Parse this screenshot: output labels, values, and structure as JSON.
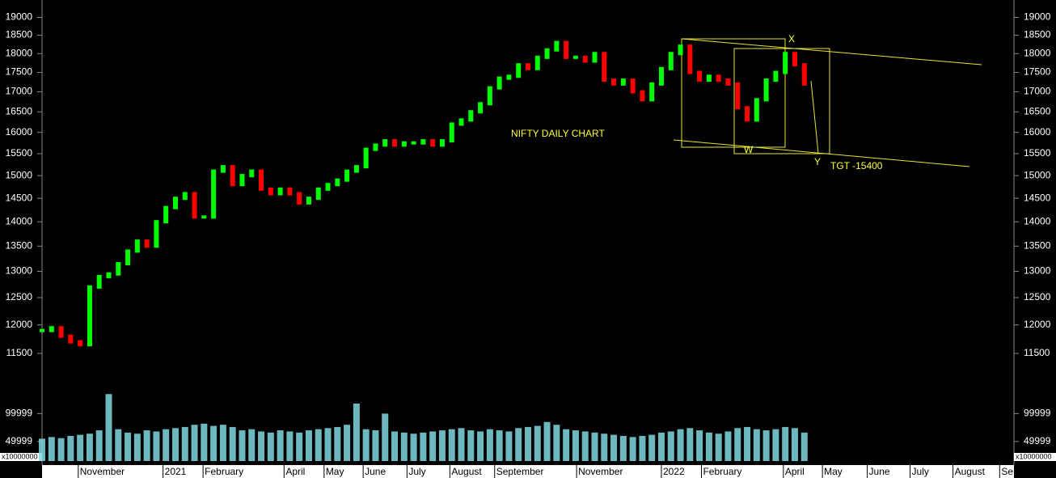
{
  "chart_data": {
    "type": "price-volume",
    "annotation": "NIFTY DAILY CHART",
    "labels": [
      "X",
      "W",
      "Y",
      "TGT -15400"
    ],
    "x": [
      0,
      1,
      2,
      3,
      4,
      5,
      6,
      7,
      8,
      9,
      10,
      11,
      12,
      13,
      14,
      15,
      16,
      17,
      18,
      19,
      20,
      21,
      22,
      23,
      24,
      25,
      26,
      27,
      28,
      29,
      30,
      31,
      32,
      33,
      34,
      35,
      36,
      37,
      38,
      39,
      40,
      41,
      42,
      43,
      44,
      45,
      46,
      47,
      48,
      49,
      50,
      51,
      52,
      53,
      54,
      55,
      56,
      57,
      58,
      59,
      60,
      61,
      62,
      63,
      64,
      65,
      66,
      67,
      68,
      69,
      70,
      71,
      72,
      73,
      74,
      75,
      76,
      77,
      78,
      79,
      80
    ],
    "values": [
      11900,
      11950,
      11800,
      11700,
      11650,
      12700,
      12900,
      12950,
      13150,
      13400,
      13600,
      13500,
      14000,
      14300,
      14500,
      14600,
      14100,
      14100,
      15100,
      15200,
      14800,
      15000,
      15100,
      14700,
      14600,
      14700,
      14600,
      14400,
      14500,
      14700,
      14800,
      14900,
      15100,
      15200,
      15600,
      15700,
      15800,
      15700,
      15750,
      15750,
      15800,
      15700,
      15800,
      16200,
      16300,
      16500,
      16700,
      17100,
      17350,
      17400,
      17700,
      17600,
      17900,
      18100,
      18300,
      17900,
      17900,
      17800,
      18000,
      17300,
      17200,
      17300,
      17000,
      16800,
      17200,
      17600,
      18000,
      18200,
      17500,
      17300,
      17400,
      17300,
      17200,
      16600,
      16300,
      16800,
      17300,
      17500,
      18000,
      17700,
      17200
    ],
    "up_color": "#00ff00",
    "down_color": "#ff0000",
    "log_y": true,
    "xlim": [
      0,
      102
    ],
    "xticks": [
      {
        "value": 3.8,
        "label": "November"
      },
      {
        "value": 12.7,
        "label": "2021"
      },
      {
        "value": 16.9,
        "label": "February"
      },
      {
        "value": 25.4,
        "label": "April"
      },
      {
        "value": 29.6,
        "label": "May"
      },
      {
        "value": 33.7,
        "label": "June"
      },
      {
        "value": 38.3,
        "label": "July"
      },
      {
        "value": 42.8,
        "label": "August"
      },
      {
        "value": 47.5,
        "label": "September"
      },
      {
        "value": 56.1,
        "label": "November"
      },
      {
        "value": 65.0,
        "label": "2022"
      },
      {
        "value": 69.2,
        "label": "February"
      },
      {
        "value": 77.8,
        "label": "April"
      },
      {
        "value": 81.9,
        "label": "May"
      },
      {
        "value": 86.6,
        "label": "June"
      },
      {
        "value": 91.1,
        "label": "July"
      },
      {
        "value": 95.6,
        "label": "August"
      },
      {
        "value": 100.5,
        "label": "Se"
      }
    ],
    "ylim": [
      11050,
      19500
    ],
    "yticks": [
      11500,
      12000,
      12500,
      13000,
      13500,
      14000,
      14500,
      15000,
      15500,
      16000,
      16500,
      17000,
      17500,
      18000,
      18500,
      19000
    ],
    "volume": {
      "values": [
        55000,
        58000,
        56000,
        60000,
        62000,
        64000,
        70000,
        135000,
        72000,
        66000,
        64000,
        70000,
        68000,
        72000,
        74000,
        76000,
        80000,
        82000,
        78000,
        80000,
        76000,
        70000,
        72000,
        68000,
        66000,
        70000,
        68000,
        66000,
        70000,
        72000,
        74000,
        76000,
        80000,
        118000,
        72000,
        70000,
        100000,
        68000,
        66000,
        64000,
        66000,
        68000,
        70000,
        72000,
        74000,
        70000,
        68000,
        72000,
        70000,
        68000,
        74000,
        76000,
        78000,
        85000,
        80000,
        72000,
        70000,
        68000,
        66000,
        64000,
        62000,
        60000,
        58000,
        60000,
        62000,
        66000,
        68000,
        72000,
        74000,
        70000,
        66000,
        64000,
        68000,
        74000,
        76000,
        72000,
        70000,
        72000,
        76000,
        74000,
        66000
      ],
      "color": "#80d8e0",
      "ylim": [
        15000,
        160000
      ],
      "yticks": [
        49999,
        99999
      ],
      "unit_label": "x10000000"
    }
  }
}
